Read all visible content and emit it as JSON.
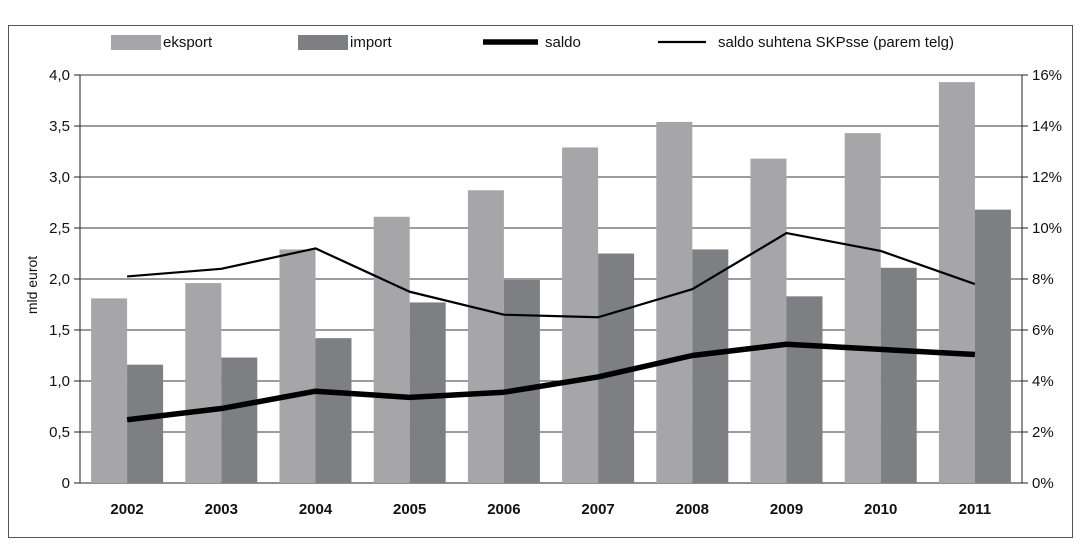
{
  "chart_data": {
    "type": "bar",
    "categories": [
      "2002",
      "2003",
      "2004",
      "2005",
      "2006",
      "2007",
      "2008",
      "2009",
      "2010",
      "2011"
    ],
    "series": [
      {
        "name": "eksport",
        "kind": "bar",
        "axis": "left",
        "color": "#a6a6a8",
        "values": [
          1.81,
          1.96,
          2.29,
          2.61,
          2.87,
          3.29,
          3.54,
          3.18,
          3.43,
          3.93
        ]
      },
      {
        "name": "import",
        "kind": "bar",
        "axis": "left",
        "color": "#7e7f82",
        "values": [
          1.16,
          1.23,
          1.42,
          1.77,
          1.99,
          2.25,
          2.29,
          1.83,
          2.11,
          2.68
        ]
      },
      {
        "name": "saldo",
        "kind": "line",
        "axis": "left",
        "color": "#000000",
        "values": [
          0.62,
          0.73,
          0.9,
          0.84,
          0.89,
          1.04,
          1.25,
          1.36,
          1.31,
          1.26
        ]
      },
      {
        "name": "saldo suhtena SKPsse (parem telg)",
        "kind": "line",
        "axis": "right",
        "color": "#000000",
        "values": [
          8.1,
          8.4,
          9.2,
          7.5,
          6.6,
          6.5,
          7.6,
          9.8,
          9.1,
          7.8
        ]
      }
    ],
    "ylabel": "mld eurot",
    "ylim": [
      0,
      4
    ],
    "y_ticks": [
      "0",
      "0,5",
      "1,0",
      "1,5",
      "2,0",
      "2,5",
      "3,0",
      "3,5",
      "4,0"
    ],
    "y2lim": [
      0,
      16
    ],
    "y2_ticks": [
      "0%",
      "2%",
      "4%",
      "6%",
      "8%",
      "10%",
      "12%",
      "14%",
      "16%"
    ],
    "grid": true,
    "legend_position": "top"
  }
}
